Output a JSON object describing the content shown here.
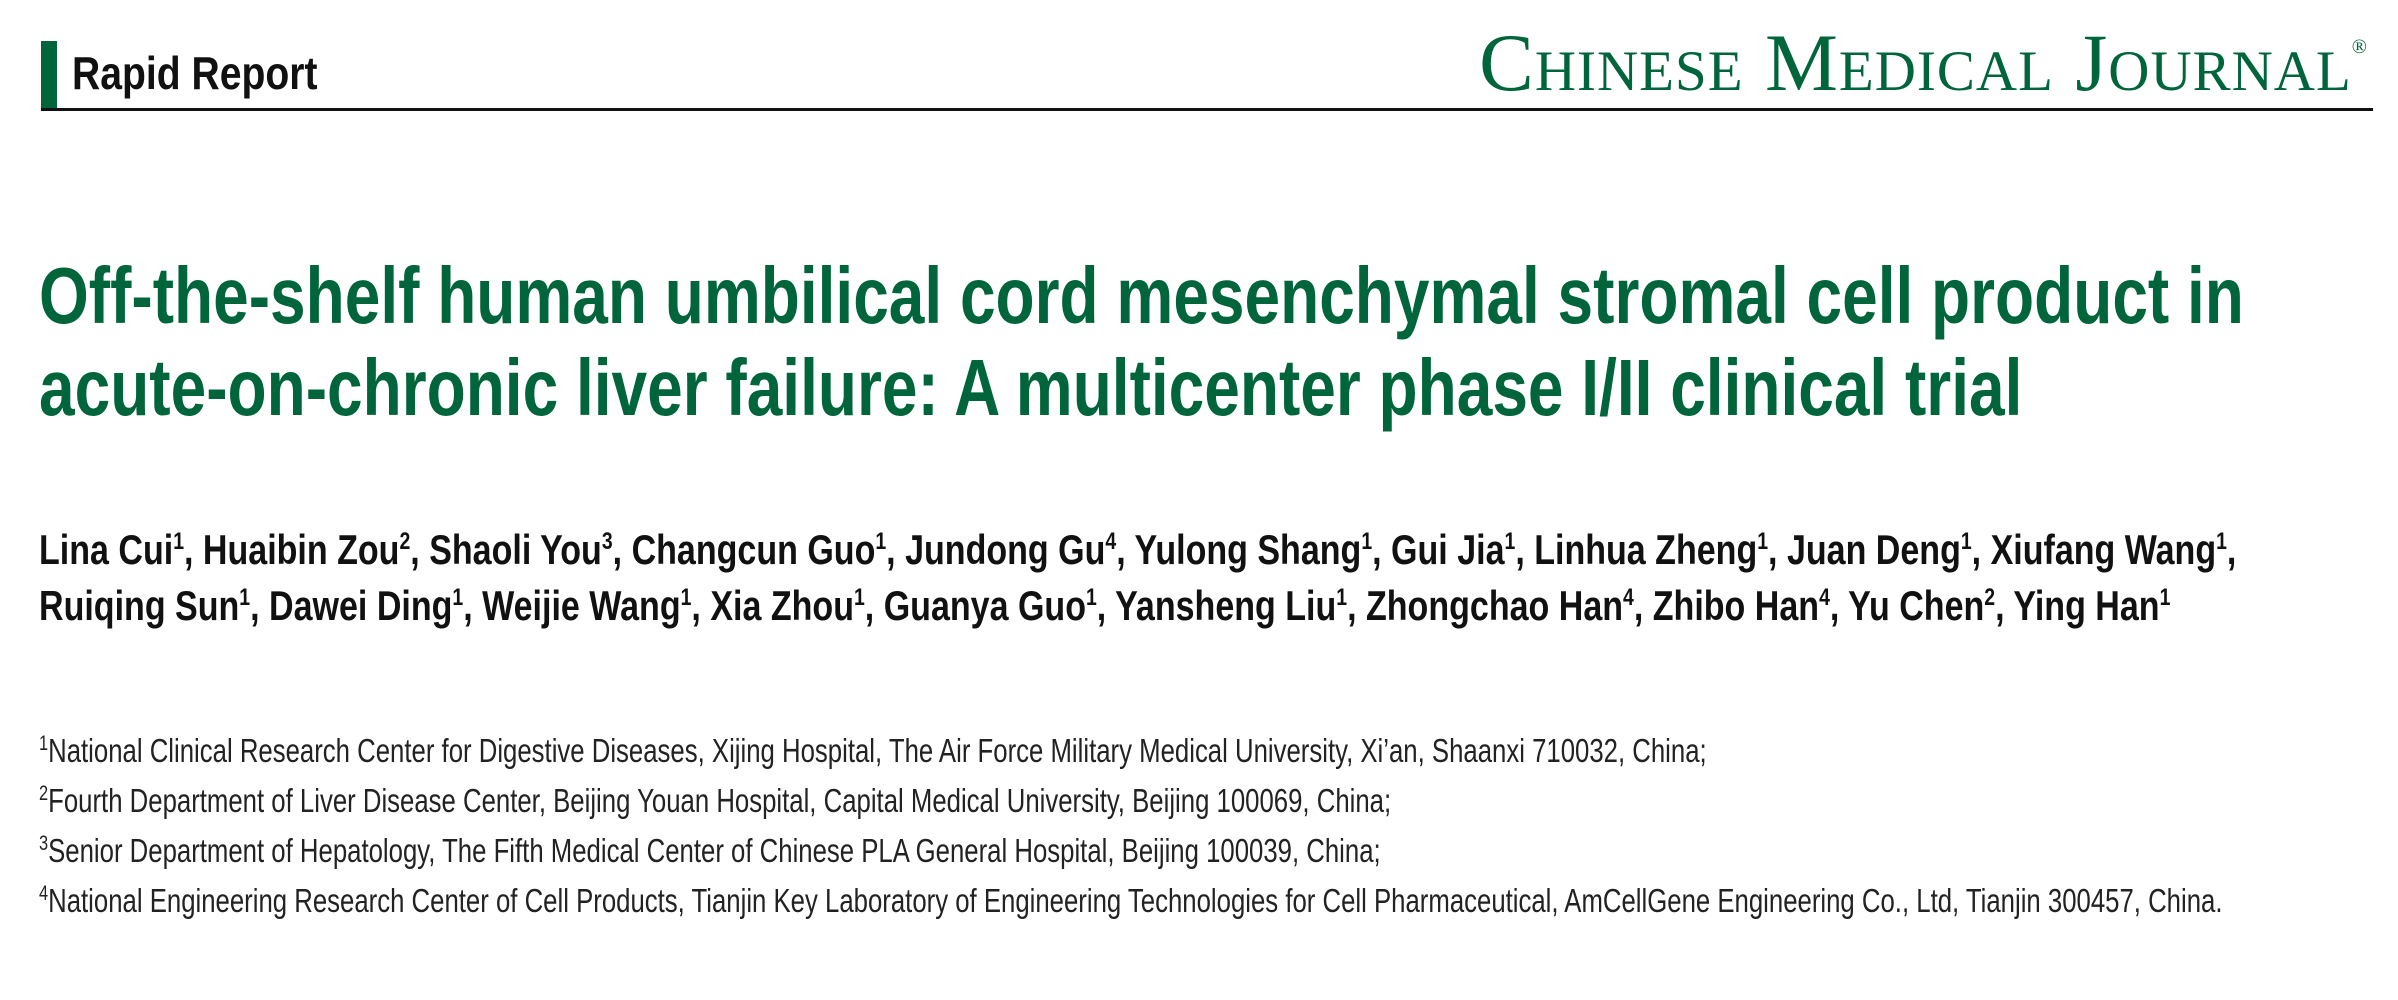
{
  "header": {
    "section": "Rapid Report",
    "journal": "Chinese Medical Journal",
    "journal_mark": "®"
  },
  "title": "Off-the-shelf human umbilical cord mesenchymal stromal cell product in acute-on-chronic liver failure: A multicenter phase I/II clinical trial",
  "authors": [
    {
      "name": "Lina Cui",
      "aff": "1"
    },
    {
      "name": "Huaibin Zou",
      "aff": "2"
    },
    {
      "name": "Shaoli You",
      "aff": "3"
    },
    {
      "name": "Changcun Guo",
      "aff": "1"
    },
    {
      "name": "Jundong Gu",
      "aff": "4"
    },
    {
      "name": "Yulong Shang",
      "aff": "1"
    },
    {
      "name": "Gui Jia",
      "aff": "1"
    },
    {
      "name": "Linhua Zheng",
      "aff": "1"
    },
    {
      "name": "Juan Deng",
      "aff": "1"
    },
    {
      "name": "Xiufang Wang",
      "aff": "1"
    },
    {
      "name": "Ruiqing Sun",
      "aff": "1"
    },
    {
      "name": "Dawei Ding",
      "aff": "1"
    },
    {
      "name": "Weijie Wang",
      "aff": "1"
    },
    {
      "name": "Xia Zhou",
      "aff": "1"
    },
    {
      "name": "Guanya Guo",
      "aff": "1"
    },
    {
      "name": "Yansheng Liu",
      "aff": "1"
    },
    {
      "name": "Zhongchao Han",
      "aff": "4"
    },
    {
      "name": "Zhibo Han",
      "aff": "4"
    },
    {
      "name": "Yu Chen",
      "aff": "2"
    },
    {
      "name": "Ying Han",
      "aff": "1"
    }
  ],
  "affiliations": [
    {
      "number": "1",
      "text": "National Clinical Research Center for Digestive Diseases, Xijing Hospital, The Air Force Military Medical University, Xi’an, Shaanxi 710032, China;"
    },
    {
      "number": "2",
      "text": "Fourth Department of Liver Disease Center, Beijing Youan Hospital, Capital Medical University, Beijing 100069, China;"
    },
    {
      "number": "3",
      "text": "Senior Department of Hepatology, The Fifth Medical Center of Chinese PLA General Hospital, Beijing 100039, China;"
    },
    {
      "number": "4",
      "text": "National Engineering Research Center of Cell Products, Tianjin Key Laboratory of Engineering Technologies for Cell Pharmaceutical, AmCellGene Engineering Co., Ltd, Tianjin 300457, China."
    }
  ]
}
